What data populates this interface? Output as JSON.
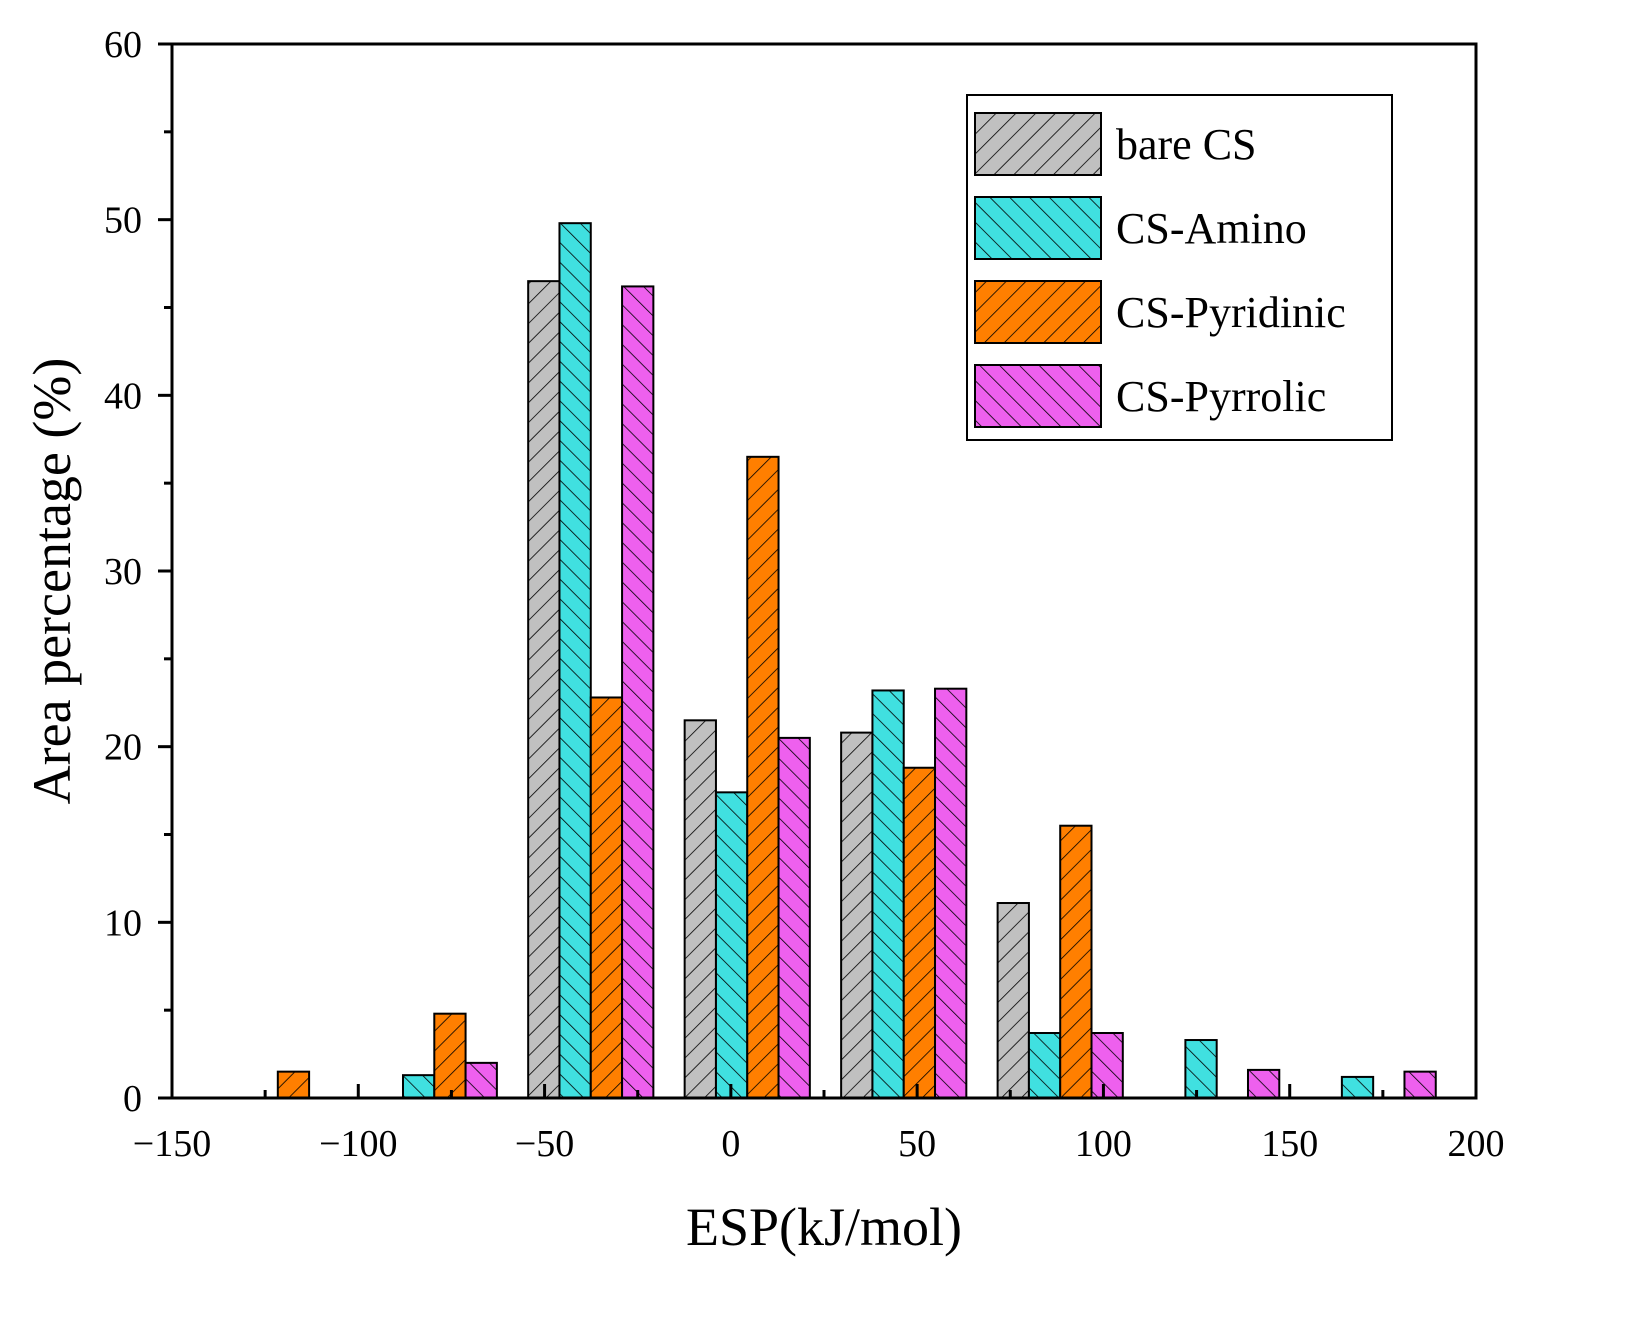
{
  "chart_data": {
    "type": "bar",
    "title": "",
    "xlabel": "ESP(kJ/mol)",
    "ylabel": "Area percentage (%)",
    "xlim": [
      -150,
      200
    ],
    "ylim": [
      0,
      60
    ],
    "xticks": [
      -150,
      -100,
      -50,
      0,
      50,
      100,
      150,
      200
    ],
    "xtick_labels": [
      "−150",
      "−100",
      "−50",
      "0",
      "50",
      "100",
      "150",
      "200"
    ],
    "yticks": [
      0,
      10,
      20,
      30,
      40,
      50,
      60
    ],
    "ytick_labels": [
      "0",
      "10",
      "20",
      "30",
      "40",
      "50",
      "60"
    ],
    "grid": false,
    "legend_position": "top-right",
    "bar_width": 8.4,
    "series": [
      {
        "name": "bare CS",
        "color": "#c0c0c0",
        "hatch": "forward",
        "bars": [
          {
            "x": -50.2,
            "value": 46.5
          },
          {
            "x": -8.2,
            "value": 21.5
          },
          {
            "x": 33.8,
            "value": 20.8
          },
          {
            "x": 75.8,
            "value": 11.1
          }
        ]
      },
      {
        "name": "CS-Amino",
        "color": "#40e0e0",
        "hatch": "backward",
        "bars": [
          {
            "x": -83.8,
            "value": 1.3
          },
          {
            "x": -41.8,
            "value": 49.8
          },
          {
            "x": 0.2,
            "value": 17.4
          },
          {
            "x": 42.2,
            "value": 23.2
          },
          {
            "x": 84.2,
            "value": 3.7
          },
          {
            "x": 126.2,
            "value": 3.3
          },
          {
            "x": 168.2,
            "value": 1.2
          }
        ]
      },
      {
        "name": "CS-Pyridinic",
        "color": "#ff7f00",
        "hatch": "forward",
        "bars": [
          {
            "x": -117.4,
            "value": 1.5
          },
          {
            "x": -75.4,
            "value": 4.8
          },
          {
            "x": -33.4,
            "value": 22.8
          },
          {
            "x": 8.6,
            "value": 36.5
          },
          {
            "x": 50.6,
            "value": 18.8
          },
          {
            "x": 92.6,
            "value": 15.5
          }
        ]
      },
      {
        "name": "CS-Pyrrolic",
        "color": "#ee60ee",
        "hatch": "backward",
        "bars": [
          {
            "x": -67.0,
            "value": 2.0
          },
          {
            "x": -25.0,
            "value": 46.2
          },
          {
            "x": 17.0,
            "value": 20.5
          },
          {
            "x": 59.0,
            "value": 23.3
          },
          {
            "x": 101.0,
            "value": 3.7
          },
          {
            "x": 143.0,
            "value": 1.6
          },
          {
            "x": 185.0,
            "value": 1.5
          }
        ]
      }
    ]
  }
}
